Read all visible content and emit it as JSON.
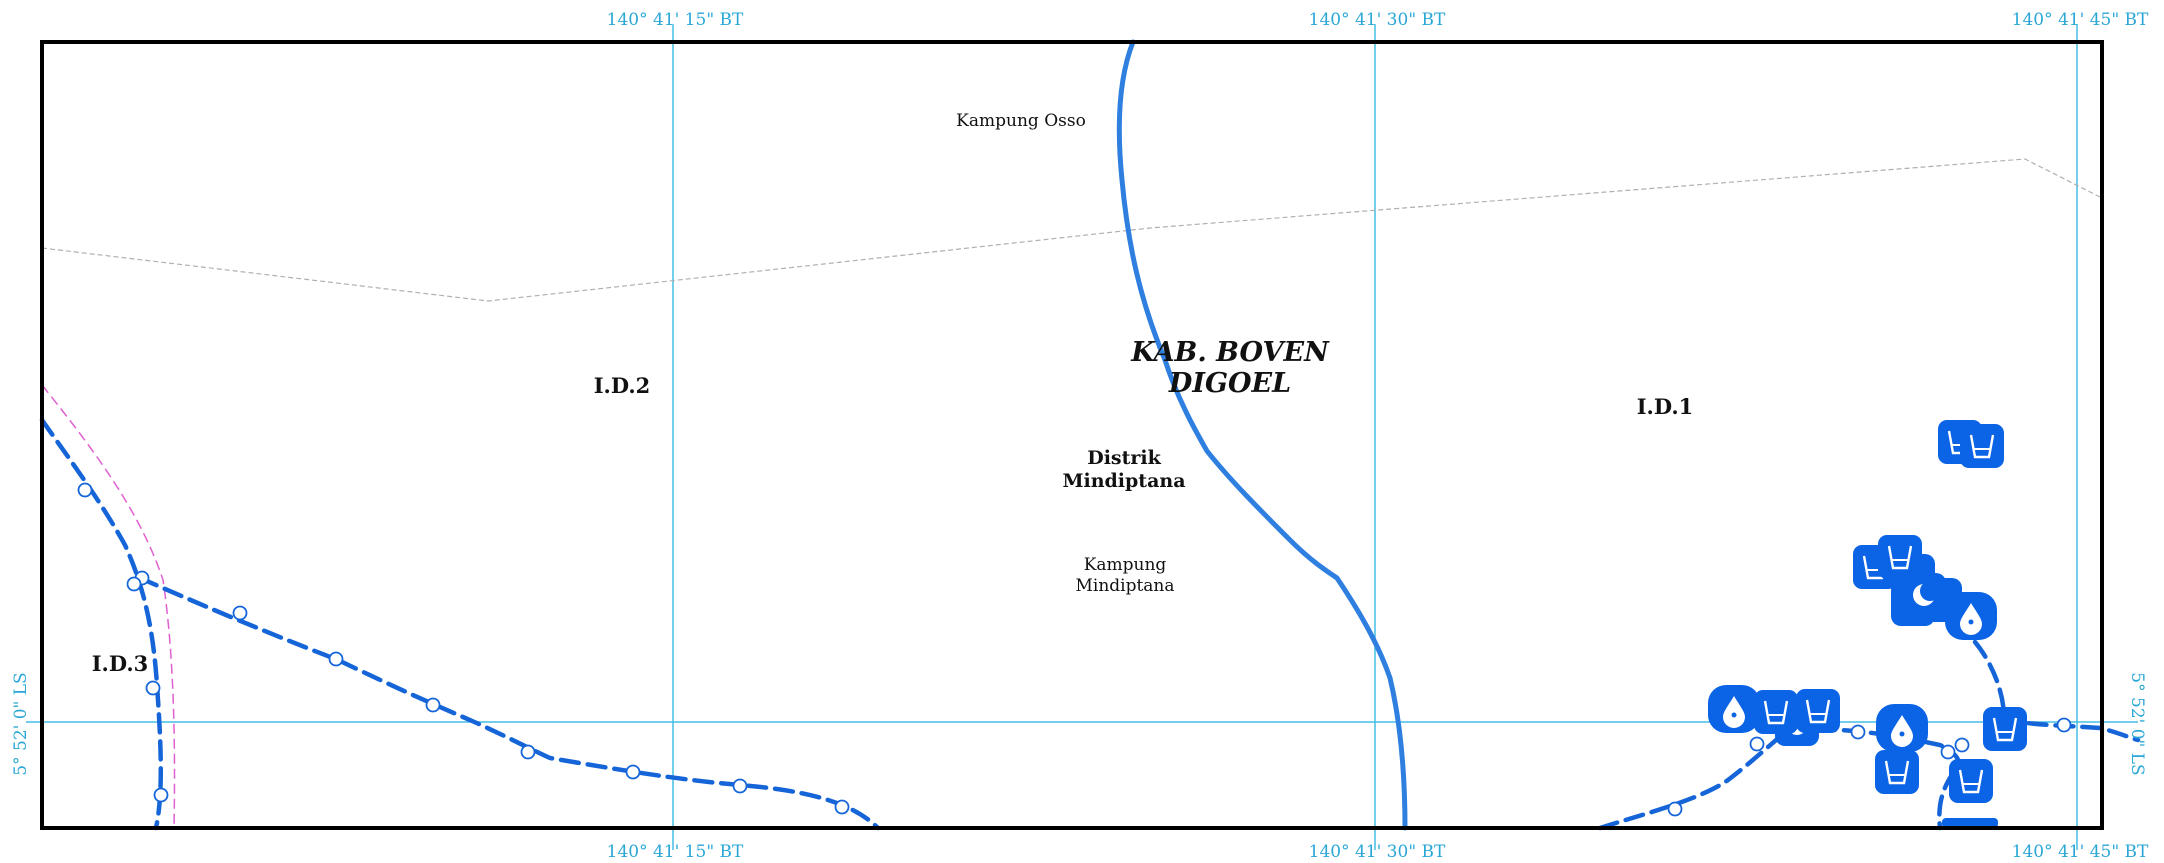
{
  "map": {
    "coordinates": {
      "lon_top": [
        "140° 41' 15\" BT",
        "140° 41' 30\" BT",
        "140° 41' 45\" BT"
      ],
      "lon_bottom": [
        "140° 41' 15\" BT",
        "140° 41' 30\" BT",
        "140° 41' 45\" BT"
      ],
      "lat_left": "5° 52' 0\" LS",
      "lat_right": "5° 52' 0\" LS"
    },
    "labels": {
      "regency_line1": "KAB. BOVEN",
      "regency_line2": "DIGOEL",
      "district_line1": "Distrik",
      "district_line2": "Mindiptana",
      "village_osso": "Kampung Osso",
      "village_mindiptana_line1": "Kampung",
      "village_mindiptana_line2": "Mindiptana",
      "zone_id1": "I.D.1",
      "zone_id2": "I.D.2",
      "zone_id3": "I.D.3"
    },
    "colors": {
      "frame": "#000000",
      "grid": "#45bde6",
      "river": "#2e7fe0",
      "pipeline": "#1565d8",
      "symbol_fill": "#0b63e5",
      "boundary_pink": "#e060d0",
      "boundary_gray": "#b0b0b0"
    },
    "icons": [
      "water-cup-icon",
      "water-drop-icon",
      "crescent-icon",
      "valve-node-icon"
    ]
  }
}
